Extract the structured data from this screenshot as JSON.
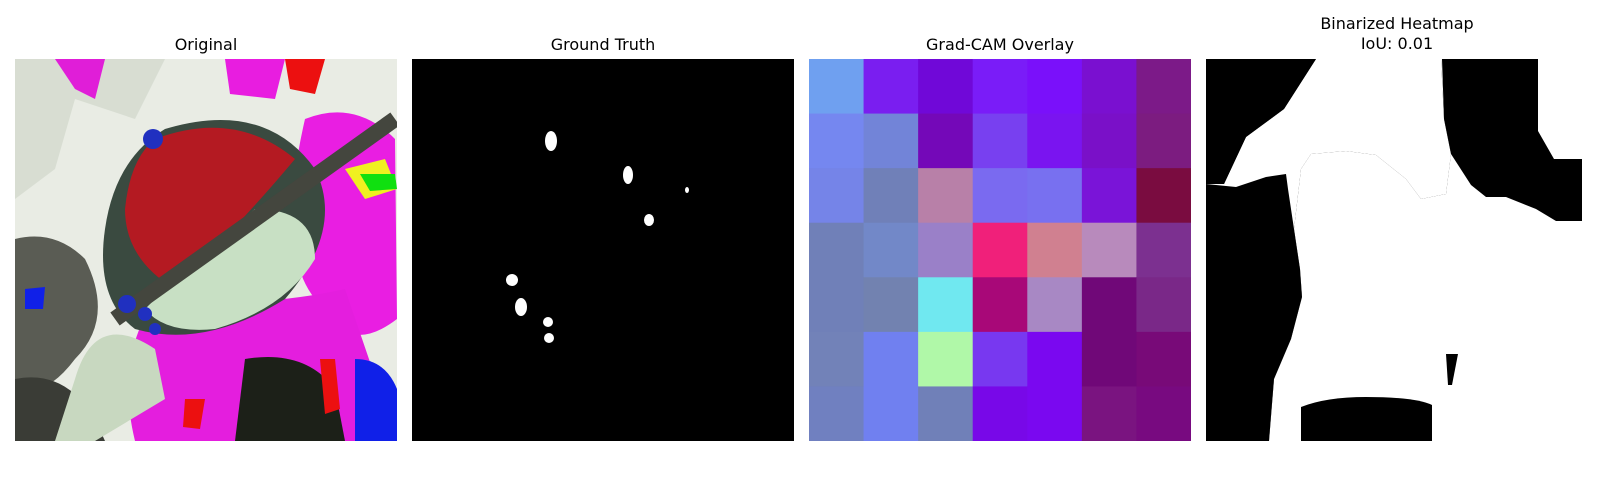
{
  "panels": [
    {
      "title": "Original"
    },
    {
      "title": "Ground Truth"
    },
    {
      "title": "Grad-CAM Overlay"
    },
    {
      "title": "Binarized Heatmap",
      "subtitle": "IoU: 0.01"
    }
  ],
  "gradcam_grid": [
    [
      "#6fa0f0",
      "#7a1ef0",
      "#7008d8",
      "#7a1cf8",
      "#7a10fa",
      "#7a10d0",
      "#7c1a88"
    ],
    [
      "#7587f0",
      "#7284d8",
      "#7408b8",
      "#7840f0",
      "#7a14f0",
      "#7a10c8",
      "#7c1c80"
    ],
    [
      "#7584e8",
      "#7080b8",
      "#b880a8",
      "#7a6af0",
      "#7870f0",
      "#7a14d8",
      "#7a0c40"
    ],
    [
      "#7080b8",
      "#7288c8",
      "#9a80c8",
      "#f0207a",
      "#d08090",
      "#b88abc",
      "#7c3090"
    ],
    [
      "#7080b8",
      "#7282b0",
      "#70e8f0",
      "#a80878",
      "#a888c4",
      "#700878",
      "#7a2888"
    ],
    [
      "#7282b8",
      "#7080f0",
      "#b0f8a8",
      "#7838f0",
      "#7a08f0",
      "#700878",
      "#780a78"
    ],
    [
      "#7080c0",
      "#7080f0",
      "#7080b8",
      "#7808e8",
      "#7a08f0",
      "#7a1480",
      "#780a80"
    ]
  ]
}
